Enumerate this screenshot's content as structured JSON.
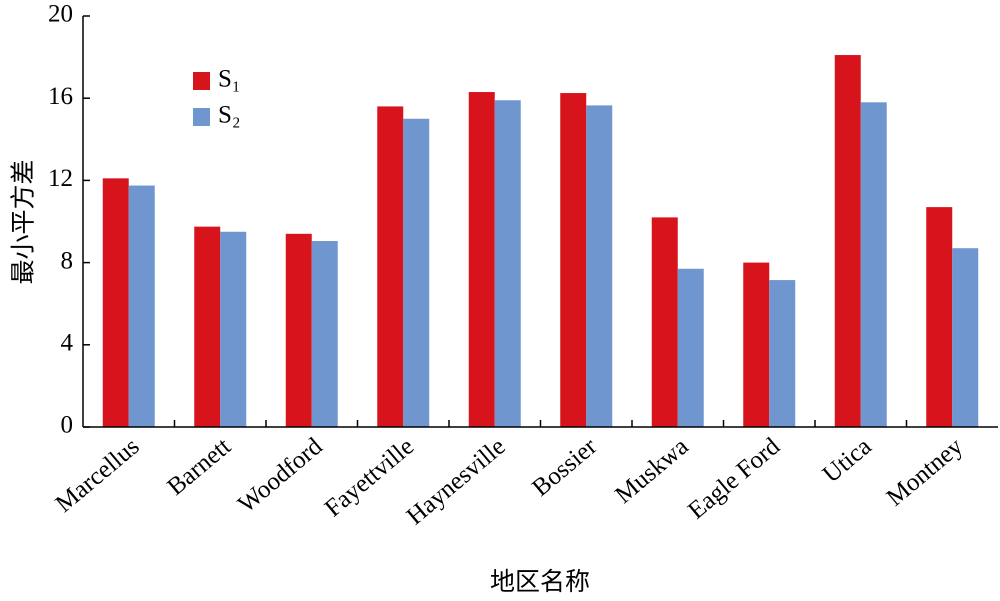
{
  "chart_data": {
    "type": "bar",
    "x_label": "地区名称",
    "y_label": "最小平方差",
    "categories": [
      "Marcellus",
      "Barnett",
      "Woodford",
      "Fayettville",
      "Haynesville",
      "Bossier",
      "Muskwa",
      "Eagle Ford",
      "Utica",
      "Montney"
    ],
    "series": [
      {
        "name": "S₁",
        "color": "#d7141b",
        "values": [
          12.1,
          9.75,
          9.4,
          15.6,
          16.3,
          16.25,
          10.2,
          8.0,
          18.1,
          10.7
        ]
      },
      {
        "name": "S₂",
        "color": "#7096cf",
        "values": [
          11.75,
          9.5,
          9.05,
          15.0,
          15.9,
          15.65,
          7.7,
          7.15,
          15.8,
          8.7
        ]
      }
    ],
    "ylim": [
      0,
      20
    ],
    "yticks": [
      0,
      4,
      8,
      12,
      16,
      20
    ],
    "grid": false,
    "legend": "upper left"
  }
}
